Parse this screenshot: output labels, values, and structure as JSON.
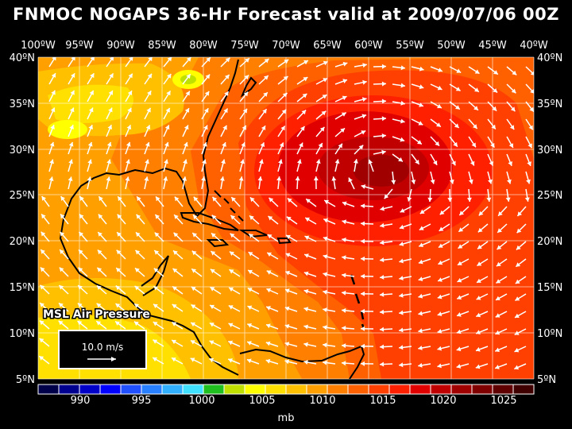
{
  "title": "FNMOC NOGAPS 36-Hr Forecast valid at 2009/07/06 00Z",
  "field_label": "MSL Air Pressure",
  "wind_key": {
    "label": "10.0 m/s"
  },
  "lon_labels": [
    "100ºW",
    "95ºW",
    "90ºW",
    "85ºW",
    "80ºW",
    "75ºW",
    "70ºW",
    "65ºW",
    "60ºW",
    "55ºW",
    "50ºW",
    "45ºW",
    "40ºW"
  ],
  "lat_labels": [
    "40ºN",
    "35ºN",
    "30ºN",
    "25ºN",
    "20ºN",
    "15ºN",
    "10ºN",
    "5ºN"
  ],
  "legend": {
    "unit": "mb",
    "tick_labels": [
      "990",
      "995",
      "1000",
      "1005",
      "1010",
      "1015",
      "1020",
      "1025"
    ],
    "colors": [
      "#00004a",
      "#000090",
      "#0000c8",
      "#0000ff",
      "#2050ff",
      "#2880ff",
      "#30b0ff",
      "#40e0ff",
      "#20c020",
      "#c0e000",
      "#ffff00",
      "#ffe000",
      "#ffc000",
      "#ffa000",
      "#ff8000",
      "#ff6000",
      "#ff4000",
      "#ff2000",
      "#e00000",
      "#c00000",
      "#a00000",
      "#800000",
      "#600000",
      "#400000"
    ]
  },
  "colors": {
    "land": "#000000",
    "graticule": "#ffffff",
    "wind_arrow": "#ffffff"
  }
}
